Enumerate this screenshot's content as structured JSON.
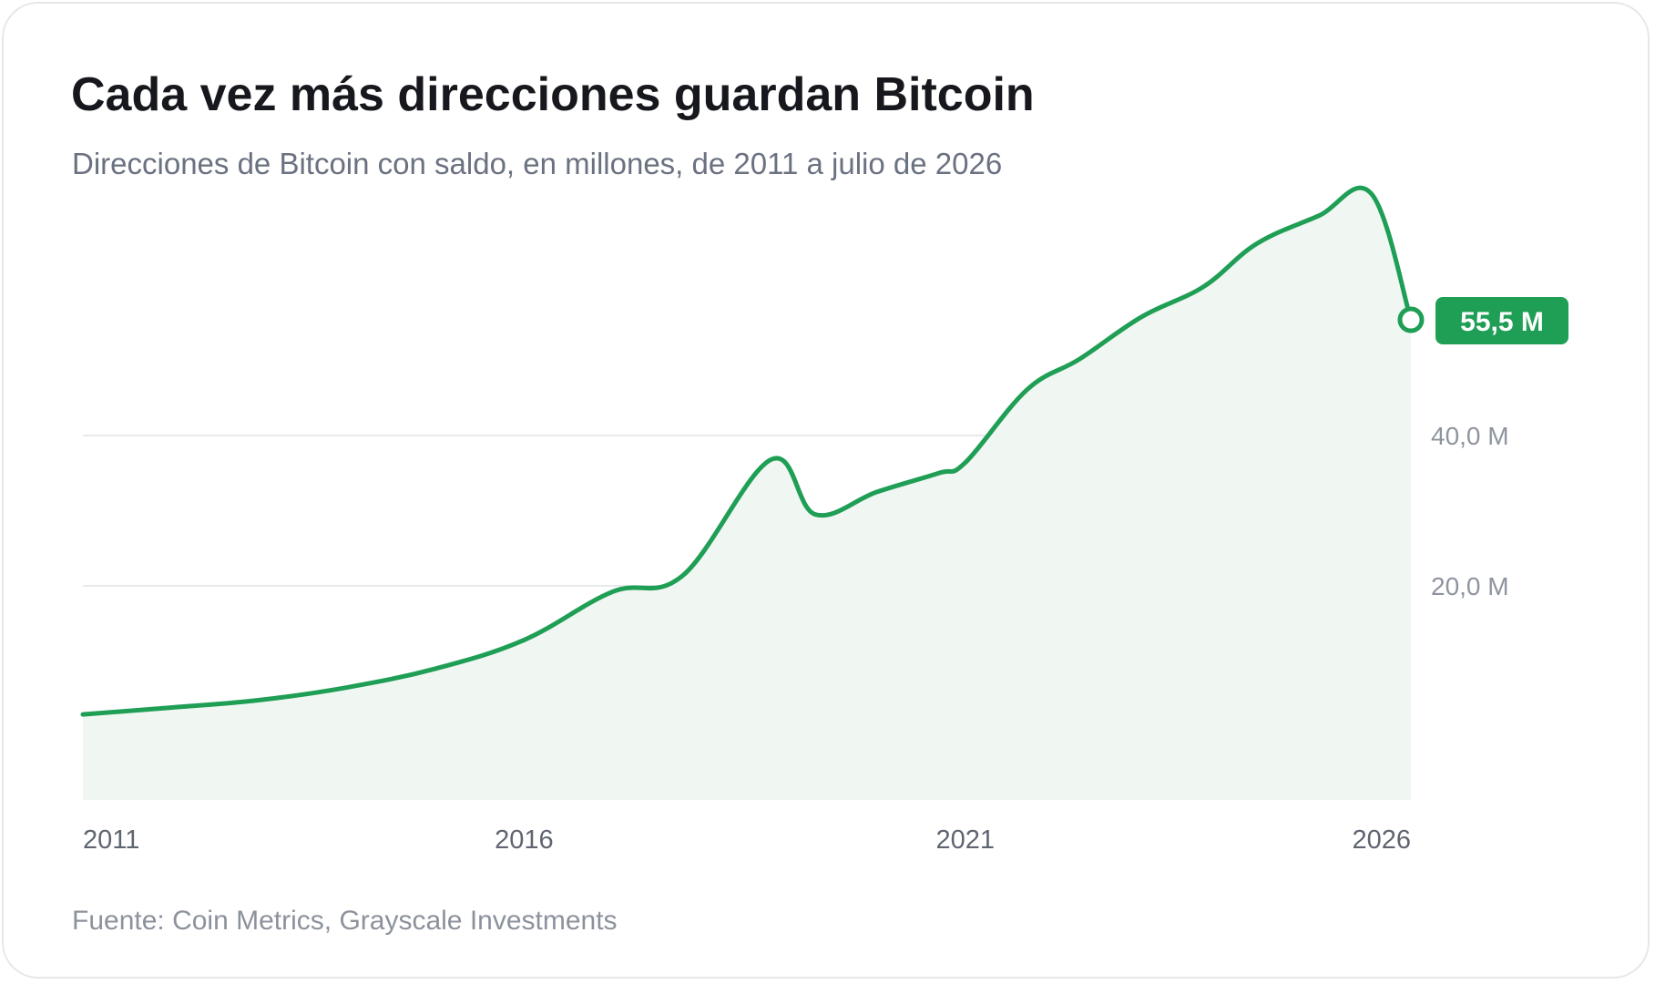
{
  "title": "Cada vez más direcciones guardan Bitcoin",
  "subtitle": "Direcciones de Bitcoin con saldo, en millones, de 2011 a julio de 2026",
  "source": "Fuente: Coin Metrics, Grayscale Investments",
  "colors": {
    "line": "#1f9e55",
    "area": "#f0f7f2",
    "grid": "#e7e9ec",
    "badge": "#1f9e55"
  },
  "chart_data": {
    "type": "area",
    "x": [
      2011.0,
      2012.0,
      2013.0,
      2014.0,
      2015.0,
      2016.0,
      2017.0,
      2017.8,
      2018.8,
      2019.3,
      2020.0,
      2020.7,
      2021.0,
      2021.7,
      2022.3,
      2023.0,
      2023.7,
      2024.3,
      2025.0,
      2025.6,
      2026.0,
      2026.5
    ],
    "values": [
      2.9,
      3.8,
      4.8,
      6.5,
      9.0,
      12.8,
      19.2,
      21.4,
      36.8,
      29.5,
      32.5,
      35.0,
      36.4,
      46.1,
      50.2,
      55.8,
      59.8,
      65.5,
      69.2,
      72.2,
      75.3,
      55.5
    ],
    "last_value_label": "55,5 M",
    "y_ticks": [
      {
        "value": 20,
        "label": "20,0 M"
      },
      {
        "value": 40,
        "label": "40,0 M"
      }
    ],
    "x_ticks": [
      {
        "value": 2011,
        "label": "2011"
      },
      {
        "value": 2016,
        "label": "2016"
      },
      {
        "value": 2021,
        "label": "2021"
      },
      {
        "value": 2026,
        "label": "2026"
      }
    ],
    "xlim": [
      2011,
      2026.05
    ],
    "ylim": [
      0,
      75
    ],
    "grid": true
  }
}
